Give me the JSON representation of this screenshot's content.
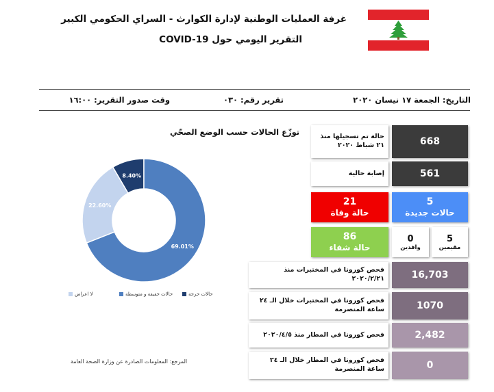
{
  "header": {
    "title_line1": "غرفة العمليات الوطنية لإدارة الكوارث - السراي الحكومي الكبير",
    "title_line2": "التقرير اليومي حول COVID-19",
    "flag_colors": {
      "red": "#e2242b",
      "white": "#ffffff",
      "cedar": "#2e9e3a"
    }
  },
  "info_bar": {
    "date": "التاريخ: الجمعة ١٧ نيسان ٢٠٢٠",
    "report_number": "تقرير رقم: ٠٣٠",
    "issue_time": "وقت صدور التقرير: ١٦:٠٠"
  },
  "chart_data": {
    "type": "pie",
    "title": "توزّع الحالات حسب الوضع الصحّي",
    "slices": [
      {
        "label": "حالات حرجة",
        "value": 8.4,
        "display": "8.40%",
        "color": "#1f3d6e"
      },
      {
        "label": "حالات خفيفة و متوسطة",
        "value": 69.01,
        "display": "69.01%",
        "color": "#4f7fc0"
      },
      {
        "label": "لا اعراض",
        "value": 22.6,
        "display": "22.60%",
        "color": "#c3d4ee"
      }
    ],
    "legend_position": "bottom"
  },
  "source": "المرجع: المعلومات الصادرة عن وزارة الصحة العامة",
  "stats": {
    "total_label": "حالة تم تسجيلها منذ ٢١ شباط ٢٠٢٠",
    "total_value": "668",
    "active_label": "إصابة حالية",
    "active_value": "561",
    "deaths_value": "21",
    "deaths_label": "حالة وفاة",
    "new_value": "5",
    "new_label": "حالات جديدة",
    "recovered_value": "86",
    "recovered_label": "حالة شفاء",
    "incoming_value": "0",
    "incoming_label": "وافدين",
    "residents_value": "5",
    "residents_label": "مقيمين",
    "lab_total_label": "فحص كورونا في المختبرات منذ ٢٠٢٠/٢/٢١",
    "lab_total_value": "16,703",
    "lab_24h_label": "فحص كورونا في المختبرات خلال الـ ٢٤ ساعة المنصرمة",
    "lab_24h_value": "1070",
    "airport_total_label": "فحص كورونا في المطار منذ ٢٠٢٠/٤/٥",
    "airport_total_value": "2,482",
    "airport_24h_label": "فحص كورونا في المطار خلال الـ ٢٤ ساعة المنصرمة",
    "airport_24h_value": "0"
  }
}
